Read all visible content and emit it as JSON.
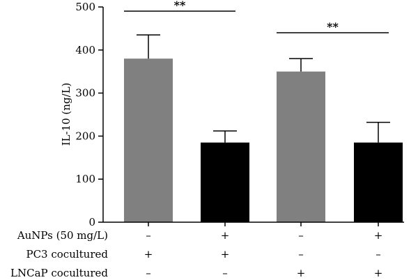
{
  "chart_data": {
    "type": "bar",
    "ylabel": "IL-10 (ng/L)",
    "ylim": [
      0,
      500
    ],
    "yticks": [
      "0",
      "100",
      "200",
      "300",
      "400",
      "500"
    ],
    "bars": [
      {
        "value": 380,
        "error": 55,
        "color": "#808080"
      },
      {
        "value": 185,
        "error": 27,
        "color": "#000000"
      },
      {
        "value": 350,
        "error": 30,
        "color": "#808080"
      },
      {
        "value": 185,
        "error": 47,
        "color": "#000000"
      }
    ],
    "significance": [
      {
        "from": 0,
        "to": 1,
        "label": "**"
      },
      {
        "from": 2,
        "to": 3,
        "label": "**"
      }
    ],
    "conditions": [
      {
        "label": "AuNPs (50 mg/L)",
        "signs": [
          "–",
          "+",
          "–",
          "+"
        ]
      },
      {
        "label": "PC3 cocultured",
        "signs": [
          "+",
          "+",
          "–",
          "–"
        ]
      },
      {
        "label": "LNCaP cocultured",
        "signs": [
          "–",
          "–",
          "+",
          "+"
        ]
      }
    ]
  }
}
